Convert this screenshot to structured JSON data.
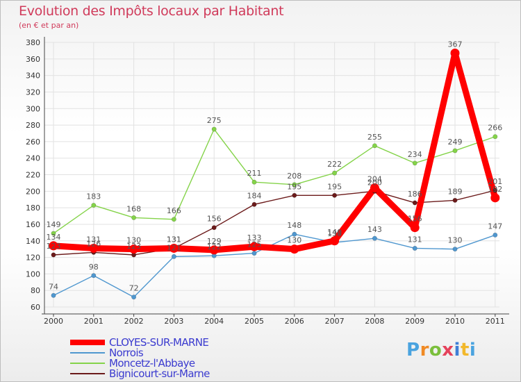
{
  "title": "Evolution des Impôts locaux par Habitant",
  "subtitle": "(en € et par an)",
  "logo": [
    "P",
    "r",
    "o",
    "x",
    "i",
    "t",
    "i"
  ],
  "colors": {
    "series": [
      "#ff0000",
      "#4f97cf",
      "#84d349",
      "#6b1a1a"
    ],
    "grid": "#e2e2e2",
    "label": "#555555"
  },
  "chart_data": {
    "type": "line",
    "title": "Evolution des Impôts locaux par Habitant",
    "subtitle": "(en € et par an)",
    "x": [
      "2000",
      "2001",
      "2002",
      "2003",
      "2004",
      "2005",
      "2006",
      "2007",
      "2008",
      "2009",
      "2010",
      "2011"
    ],
    "yticks": [
      60,
      80,
      100,
      120,
      140,
      160,
      180,
      200,
      220,
      240,
      260,
      280,
      300,
      320,
      340,
      360,
      380
    ],
    "ylim": [
      60,
      380
    ],
    "grid": true,
    "legend_position": "bottom-left",
    "series": [
      {
        "name": "CLOYES-SUR-MARNE",
        "values": [
          134,
          131,
          130,
          131,
          129,
          133,
          130,
          140,
          204,
          156,
          367,
          192
        ]
      },
      {
        "name": "Norrois",
        "values": [
          74,
          98,
          72,
          121,
          122,
          125,
          148,
          138,
          143,
          131,
          130,
          147
        ]
      },
      {
        "name": "Moncetz-l'Abbaye",
        "values": [
          149,
          183,
          168,
          166,
          275,
          211,
          208,
          222,
          255,
          234,
          249,
          266
        ]
      },
      {
        "name": "Bignicourt-sur-Marne",
        "values": [
          123,
          126,
          123,
          131,
          156,
          184,
          195,
          195,
          200,
          186,
          189,
          201
        ]
      }
    ]
  }
}
